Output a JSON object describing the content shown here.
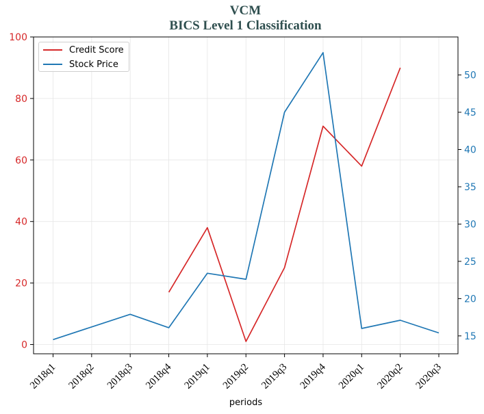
{
  "chart_data": {
    "type": "line",
    "title": "VCM",
    "subtitle": "BICS Level 1 Classification",
    "xlabel": "periods",
    "categories": [
      "2018q1",
      "2018q2",
      "2018q3",
      "2018q4",
      "2019q1",
      "2019q2",
      "2019q3",
      "2019q4",
      "2020q1",
      "2020q2",
      "2020q3"
    ],
    "series": [
      {
        "name": "Credit Score",
        "axis": "left",
        "color": "#d62728",
        "values": [
          null,
          null,
          null,
          17,
          38,
          1,
          25,
          71,
          58,
          90,
          null
        ]
      },
      {
        "name": "Stock Price",
        "axis": "right",
        "color": "#1f77b4",
        "values": [
          14.5,
          16.2,
          17.9,
          16.1,
          23.4,
          22.6,
          45.0,
          53.0,
          16.0,
          17.1,
          15.4
        ]
      }
    ],
    "left_axis": {
      "ylim": [
        -3,
        100
      ],
      "ticks": [
        0,
        20,
        40,
        60,
        80,
        100
      ],
      "color": "#d62728"
    },
    "right_axis": {
      "ylim": [
        12.6,
        55.1
      ],
      "ticks": [
        15,
        20,
        25,
        30,
        35,
        40,
        45,
        50
      ],
      "color": "#1f77b4"
    },
    "grid": true,
    "legend_position": "top-left"
  }
}
